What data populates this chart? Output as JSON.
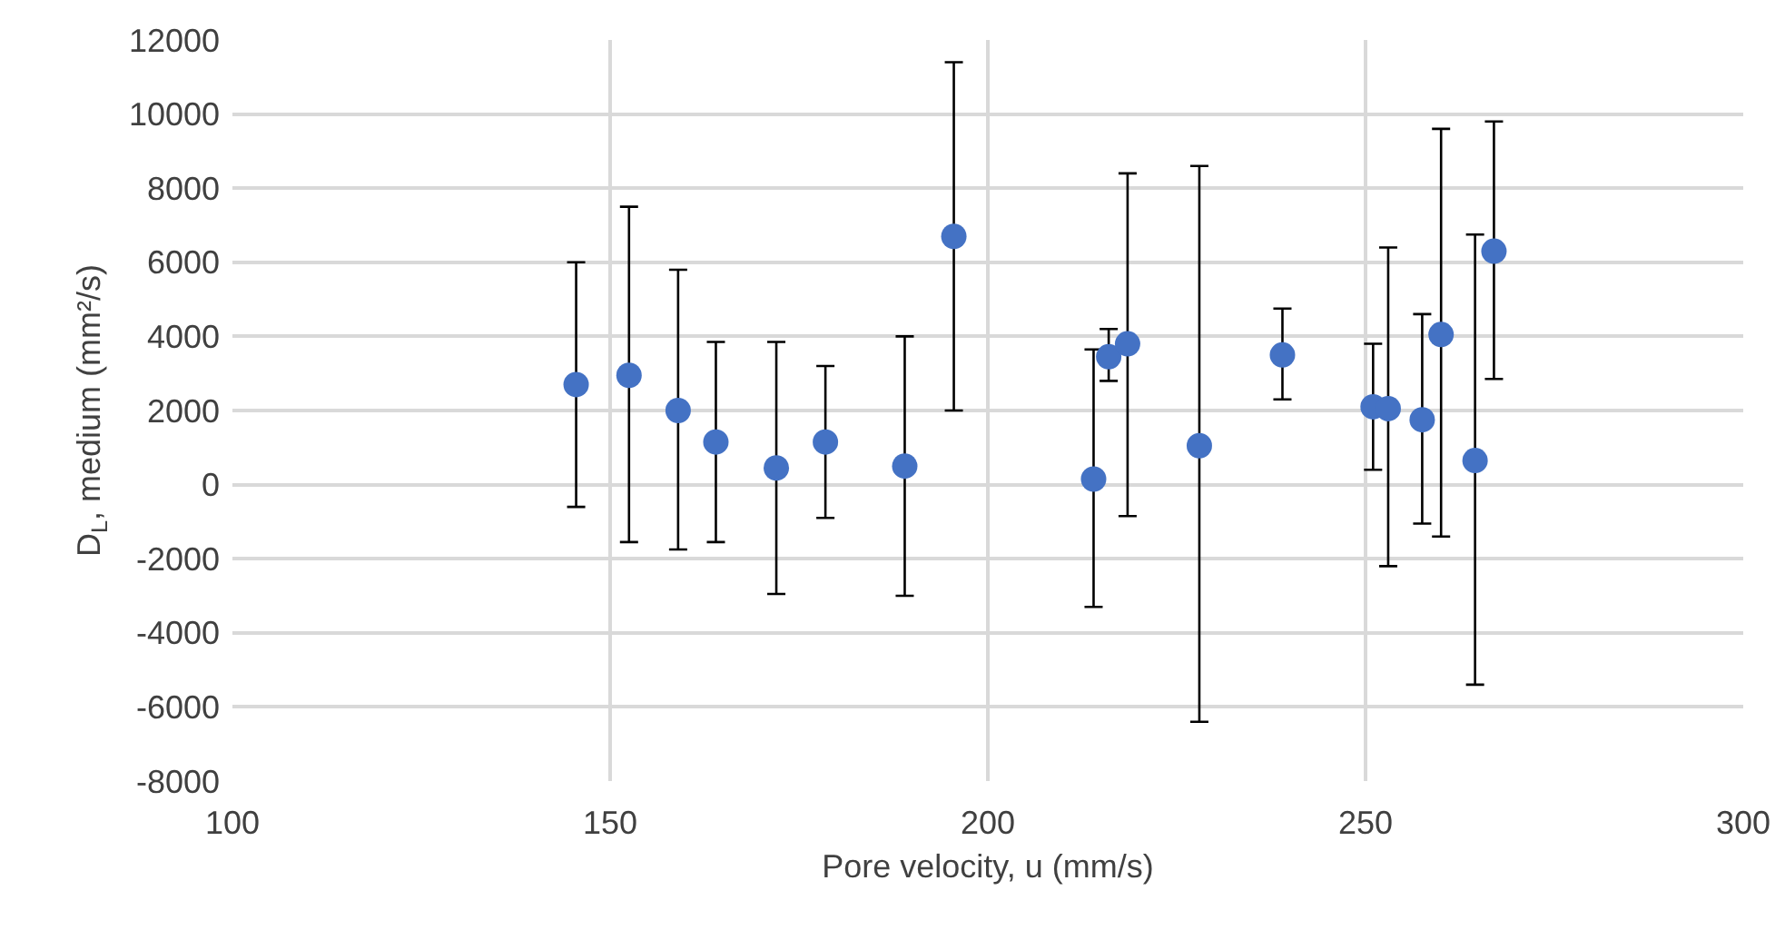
{
  "chart_data": {
    "type": "scatter",
    "xlabel": "Pore velocity, u (mm/s)",
    "ylabel": "D$_{L}$, medium (mm²/s)",
    "x": [
      145.5,
      152.5,
      159,
      164,
      172,
      178.5,
      189,
      195.5,
      214,
      216,
      218.5,
      228,
      239,
      251,
      253,
      257.5,
      260,
      264.5,
      267
    ],
    "series": [
      {
        "color": "#4472c4",
        "values": [
          2700,
          2950,
          2000,
          1150,
          450,
          1150,
          500,
          6700,
          150,
          3450,
          3800,
          1050,
          3500,
          2100,
          2050,
          1750,
          4050,
          650,
          6300
        ],
        "errors": [
          [
            -600,
            6000
          ],
          [
            -1550,
            7500
          ],
          [
            -1750,
            5800
          ],
          [
            -1550,
            3850
          ],
          [
            -2950,
            3850
          ],
          [
            -900,
            3200
          ],
          [
            -3000,
            4000
          ],
          [
            2000,
            11400
          ],
          [
            -3300,
            3650
          ],
          [
            2800,
            4200
          ],
          [
            -850,
            8400
          ],
          [
            -6400,
            8600
          ],
          [
            2300,
            4750
          ],
          [
            400,
            3800
          ],
          [
            -2200,
            6400
          ],
          [
            -1050,
            4600
          ],
          [
            -1400,
            9600
          ],
          [
            -5400,
            6750
          ],
          [
            2850,
            9800
          ]
        ]
      }
    ],
    "xlim": [
      100,
      300
    ],
    "xticks": [
      100,
      150,
      200,
      250,
      300
    ],
    "ylim": [
      -8000,
      12000
    ],
    "yticks": [
      -8000,
      -6000,
      -4000,
      -2000,
      0,
      2000,
      4000,
      6000,
      8000,
      10000,
      12000
    ],
    "grid": true,
    "marker": "circle"
  }
}
